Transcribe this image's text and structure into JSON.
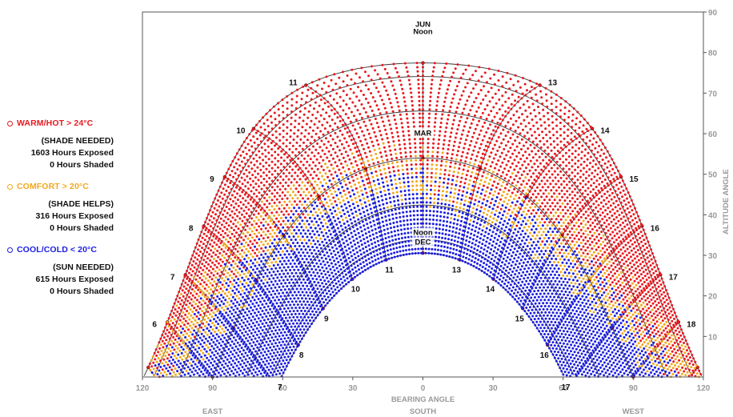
{
  "legend": [
    {
      "label": "WARM/HOT > 24°C",
      "color": "#e8191f",
      "note": "(SHADE NEEDED)",
      "exposed": "1603 Hours Exposed",
      "shaded": "0 Hours Shaded"
    },
    {
      "label": "COMFORT > 20°C",
      "color": "#f2a81d",
      "note": "(SHADE HELPS)",
      "exposed": "316 Hours Exposed",
      "shaded": "0 Hours Shaded"
    },
    {
      "label": "COOL/COLD < 20°C",
      "color": "#1c1ee0",
      "note": "(SUN NEEDED)",
      "exposed": "615 Hours Exposed",
      "shaded": "0 Hours Shaded"
    }
  ],
  "chart_data": {
    "type": "scatter",
    "title": "",
    "xlabel": "BEARING ANGLE",
    "ylabel": "ALTITUDE ANGLE",
    "xlim": [
      -120,
      120
    ],
    "ylim": [
      0,
      90
    ],
    "x_ticks": [
      "120",
      "90",
      "60",
      "30",
      "0",
      "30",
      "60",
      "90",
      "120"
    ],
    "y_ticks": [
      "10",
      "20",
      "30",
      "40",
      "50",
      "60",
      "70",
      "80",
      "90"
    ],
    "direction_labels": [
      "EAST",
      "SOUTH",
      "WEST"
    ],
    "date_labels": [
      {
        "text": "JUN",
        "hour": 12,
        "month": "jun"
      },
      {
        "text": "Noon",
        "hour": 12,
        "month": "jun",
        "offset": 1
      },
      {
        "text": "MAR",
        "hour": 12,
        "month": "mar"
      },
      {
        "text": "Noon",
        "hour": 12,
        "month": "dec"
      },
      {
        "text": "DEC",
        "hour": 12,
        "month": "dec",
        "offset": 1
      }
    ],
    "summer_hour_labels": [
      "6",
      "7",
      "8",
      "9",
      "10",
      "11",
      "13",
      "14",
      "15",
      "16",
      "17",
      "18"
    ],
    "winter_hour_labels": [
      "7",
      "8",
      "9",
      "10",
      "11",
      "13",
      "14",
      "15",
      "16",
      "17"
    ],
    "sun_path": {
      "noon_altitude": {
        "jun": 84,
        "mar": 60.5,
        "dec": 37
      },
      "hour_angle_step_deg": 15
    },
    "series": [
      {
        "name": "WARM/HOT > 24°C",
        "color": "#e8191f"
      },
      {
        "name": "COMFORT > 20°C",
        "color": "#f2a81d"
      },
      {
        "name": "COOL/COLD < 20°C",
        "color": "#1c1ee0"
      }
    ],
    "grid": true
  }
}
